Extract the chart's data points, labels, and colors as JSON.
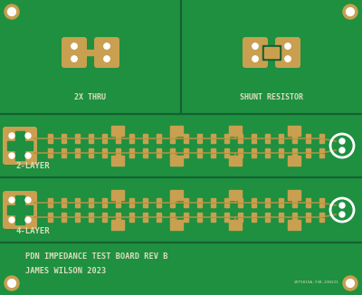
{
  "bg_color": "#1a7a2e",
  "board_bg": "#1e9040",
  "copper_color": "#c8a050",
  "silk_color": "#ddddc0",
  "line_color": "#0d5a20",
  "title_line1": "PDN IMPEDANCE TEST BOARD REV B",
  "title_line2": "JAMES WILSON 2023",
  "label_2x_thru": "2X THRU",
  "label_shunt": "SHUNT RESISTOR",
  "label_2layer": "2-LAYER",
  "label_4layer": "4-LAYER",
  "small_text": "2XT581SA-Y38-230221",
  "white": "#ffffff",
  "trace_color": "#b09040",
  "dark_green": "#156030"
}
